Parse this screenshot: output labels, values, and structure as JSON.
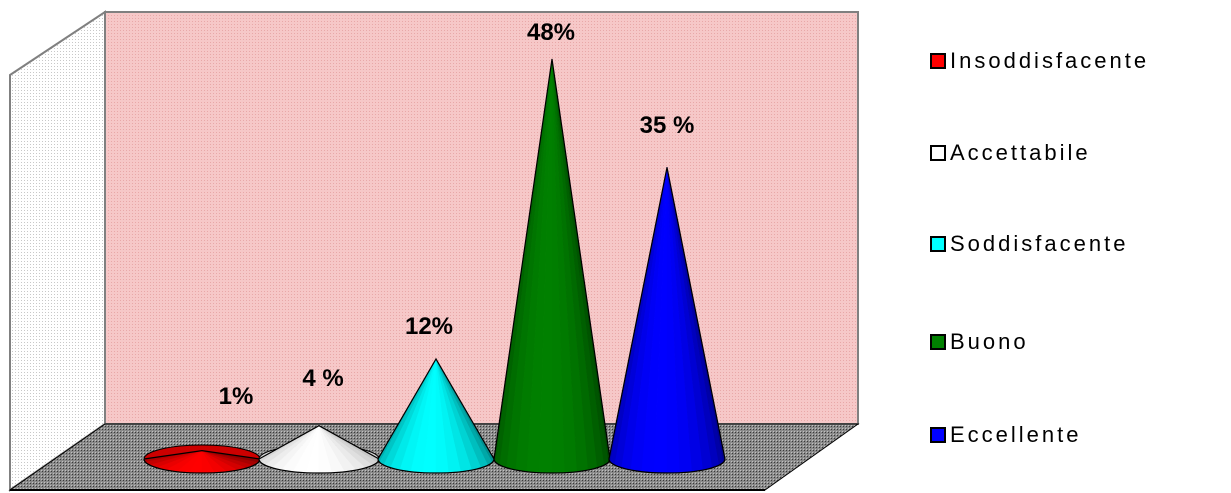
{
  "chart_data": {
    "type": "bar",
    "shape": "cone",
    "categories": [
      "Insoddisfacente",
      "Accettabile",
      "Soddisfacente",
      "Buono",
      "Eccellente"
    ],
    "values": [
      1,
      4,
      12,
      48,
      35
    ],
    "data_labels": [
      "1%",
      "4 %",
      "12%",
      "48%",
      "35 %"
    ],
    "colors": [
      "#ff0000",
      "#ffffff",
      "#00ffff",
      "#008000",
      "#0000ff"
    ],
    "legend": [
      "Insoddisfacente",
      "Accettabile",
      "Soddisfacente",
      "Buono",
      "Eccellente"
    ],
    "legend_placement": "right",
    "wall_color": "#f4c2c2",
    "floor_color": "#808080",
    "ylim": [
      0,
      48
    ],
    "grid": false
  }
}
